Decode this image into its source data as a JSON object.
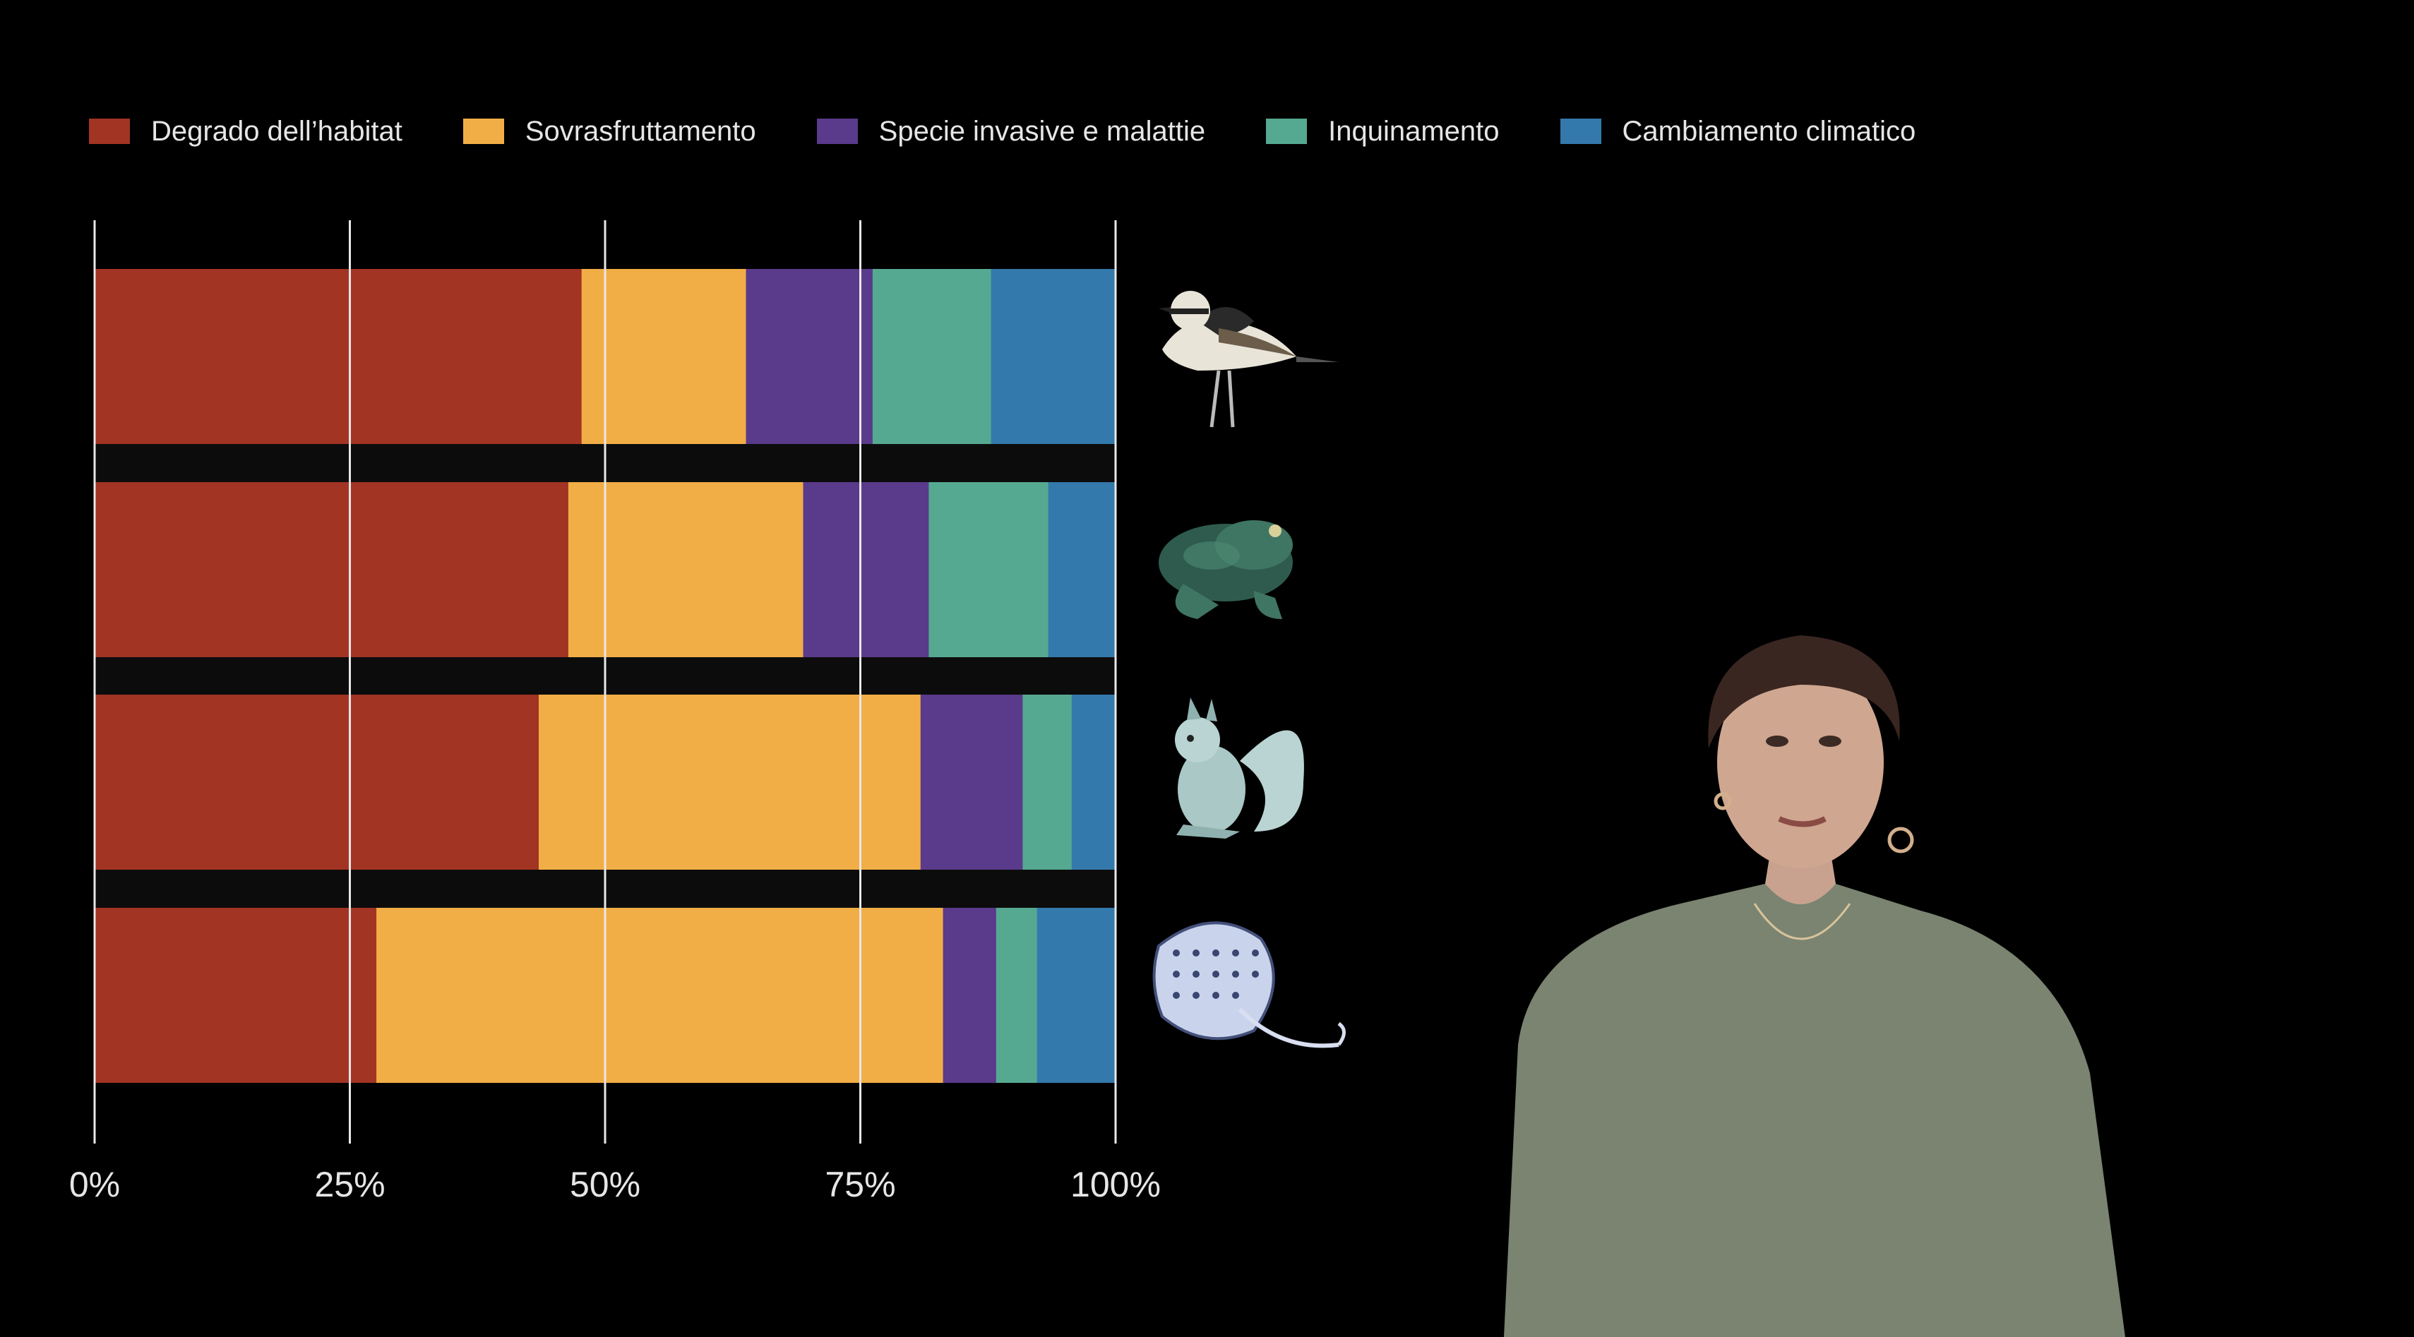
{
  "legend": [
    {
      "label": "Degrado dell’habitat",
      "color": "#a23424"
    },
    {
      "label": "Sovrasfruttamento",
      "color": "#f2ae46"
    },
    {
      "label": "Specie invasive e malattie",
      "color": "#5a3a8b"
    },
    {
      "label": "Inquinamento",
      "color": "#55a991"
    },
    {
      "label": "Cambiamento climatico",
      "color": "#3479ab"
    }
  ],
  "chart_data": {
    "type": "bar",
    "orientation": "horizontal",
    "stacked": true,
    "categories": [
      "bird-icon",
      "toad-icon",
      "squirrel-icon",
      "stingray-icon"
    ],
    "series": [
      {
        "name": "Degrado dell’habitat",
        "values": [
          47.7,
          46.4,
          43.5,
          27.6
        ]
      },
      {
        "name": "Sovrasfruttamento",
        "values": [
          16.1,
          23.0,
          37.4,
          55.5
        ]
      },
      {
        "name": "Specie invasive e malattie",
        "values": [
          12.4,
          12.3,
          10.0,
          5.2
        ]
      },
      {
        "name": "Inquinamento",
        "values": [
          11.6,
          11.7,
          4.8,
          4.0
        ]
      },
      {
        "name": "Cambiamento climatico",
        "values": [
          12.2,
          6.6,
          4.3,
          7.7
        ]
      }
    ],
    "x_ticks": [
      "0%",
      "25%",
      "50%",
      "75%",
      "100%"
    ],
    "xlim": [
      0,
      100
    ],
    "grid": true,
    "legend_position": "top"
  }
}
